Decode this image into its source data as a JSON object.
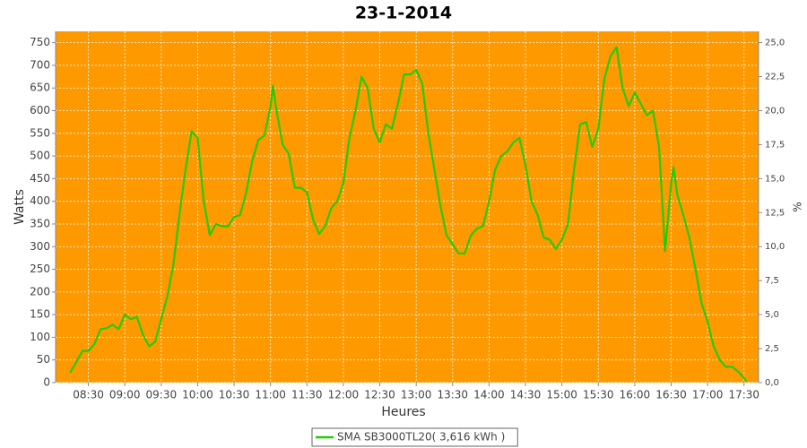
{
  "chart_data": {
    "type": "line",
    "title": "23-1-2014",
    "xlabel": "Heures",
    "ylabel": "Watts",
    "y2label": "%",
    "x": [
      "08:15",
      "08:20",
      "08:25",
      "08:30",
      "08:35",
      "08:40",
      "08:45",
      "08:50",
      "08:55",
      "09:00",
      "09:05",
      "09:10",
      "09:15",
      "09:20",
      "09:25",
      "09:30",
      "09:35",
      "09:40",
      "09:45",
      "09:50",
      "09:55",
      "10:00",
      "10:05",
      "10:10",
      "10:15",
      "10:20",
      "10:25",
      "10:30",
      "10:35",
      "10:40",
      "10:45",
      "10:50",
      "10:55",
      "11:00",
      "11:02",
      "11:05",
      "11:10",
      "11:15",
      "11:20",
      "11:25",
      "11:30",
      "11:35",
      "11:40",
      "11:45",
      "11:50",
      "11:55",
      "12:00",
      "12:05",
      "12:10",
      "12:15",
      "12:20",
      "12:25",
      "12:30",
      "12:35",
      "12:40",
      "12:45",
      "12:50",
      "12:55",
      "13:00",
      "13:05",
      "13:10",
      "13:15",
      "13:20",
      "13:25",
      "13:30",
      "13:35",
      "13:40",
      "13:45",
      "13:50",
      "13:55",
      "14:00",
      "14:05",
      "14:10",
      "14:15",
      "14:20",
      "14:25",
      "14:30",
      "14:35",
      "14:40",
      "14:45",
      "14:50",
      "14:55",
      "15:00",
      "15:05",
      "15:10",
      "15:15",
      "15:20",
      "15:25",
      "15:30",
      "15:35",
      "15:40",
      "15:45",
      "15:50",
      "15:55",
      "16:00",
      "16:05",
      "16:10",
      "16:15",
      "16:20",
      "16:25",
      "16:30",
      "16:32",
      "16:35",
      "16:40",
      "16:45",
      "16:50",
      "16:55",
      "17:00",
      "17:05",
      "17:10",
      "17:15",
      "17:20",
      "17:25",
      "17:30",
      "17:32"
    ],
    "series": [
      {
        "name": "SMA SB3000TL20( 3,616 kWh )",
        "color": "#22cc00",
        "values": [
          22,
          45,
          70,
          70,
          85,
          118,
          120,
          128,
          118,
          150,
          140,
          145,
          105,
          80,
          90,
          140,
          190,
          260,
          370,
          470,
          555,
          540,
          400,
          325,
          350,
          345,
          345,
          365,
          370,
          420,
          490,
          535,
          545,
          610,
          655,
          600,
          525,
          505,
          430,
          430,
          420,
          360,
          328,
          345,
          385,
          400,
          440,
          540,
          600,
          675,
          650,
          560,
          530,
          570,
          560,
          615,
          680,
          680,
          690,
          660,
          550,
          470,
          390,
          325,
          305,
          285,
          285,
          325,
          340,
          345,
          400,
          470,
          500,
          510,
          530,
          540,
          480,
          400,
          370,
          320,
          315,
          295,
          315,
          350,
          470,
          570,
          575,
          520,
          560,
          670,
          720,
          740,
          650,
          610,
          640,
          615,
          590,
          600,
          520,
          290,
          440,
          475,
          415,
          370,
          320,
          250,
          175,
          135,
          80,
          50,
          35,
          35,
          25,
          10,
          3
        ]
      }
    ],
    "xlim": [
      "08:03",
      "17:42"
    ],
    "xticks": [
      "08:30",
      "09:00",
      "09:30",
      "10:00",
      "10:30",
      "11:00",
      "11:30",
      "12:00",
      "12:30",
      "13:00",
      "13:30",
      "14:00",
      "14:30",
      "15:00",
      "15:30",
      "16:00",
      "16:30",
      "17:00",
      "17:30"
    ],
    "ylim": [
      0,
      775
    ],
    "yticks": [
      0,
      50,
      100,
      150,
      200,
      250,
      300,
      350,
      400,
      450,
      500,
      550,
      600,
      650,
      700,
      750
    ],
    "y2lim": [
      0,
      25.83
    ],
    "y2ticks": [
      {
        "value": 0,
        "label": "0,0"
      },
      {
        "value": 2.5,
        "label": "2,5"
      },
      {
        "value": 5,
        "label": "5,0"
      },
      {
        "value": 7.5,
        "label": "7,5"
      },
      {
        "value": 10,
        "label": "10,0"
      },
      {
        "value": 12.5,
        "label": "12,5"
      },
      {
        "value": 15,
        "label": "15,0"
      },
      {
        "value": 17.5,
        "label": "17,5"
      },
      {
        "value": 20,
        "label": "20,0"
      },
      {
        "value": 22.5,
        "label": "22,5"
      },
      {
        "value": 25,
        "label": "25,0"
      }
    ],
    "grid": true,
    "background": "#ff9900",
    "legend": "bottom"
  }
}
